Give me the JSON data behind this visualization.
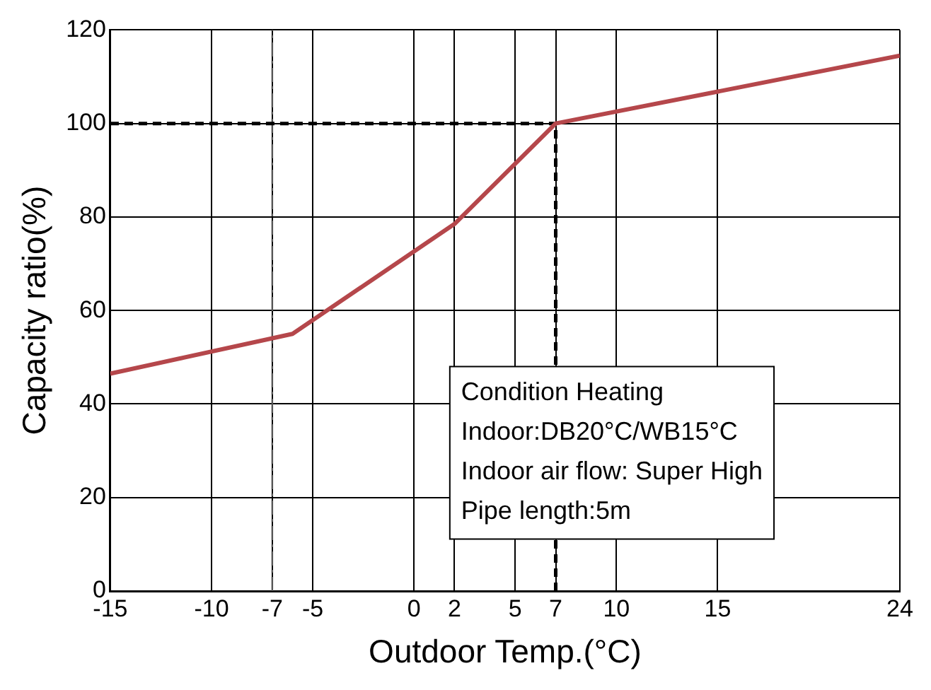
{
  "chart_data": {
    "type": "line",
    "xlabel": "Outdoor Temp.(°C)",
    "ylabel": "Capacity ratio(%)",
    "x": [
      -15,
      -6,
      2,
      7,
      24
    ],
    "series": [
      {
        "color": "#b5474b",
        "values": [
          46.5,
          55,
          78.5,
          100,
          114.5
        ]
      }
    ],
    "xlim": [
      -15,
      24
    ],
    "xticks": [
      -15,
      -10,
      -7,
      -5,
      0,
      2,
      5,
      7,
      10,
      15,
      24
    ],
    "ylim": [
      0,
      120
    ],
    "yticks": [
      0,
      20,
      40,
      60,
      80,
      100,
      120
    ],
    "grid": true,
    "marker": "none",
    "line_style": "solid",
    "legend": false,
    "ref_lines": [
      {
        "axis": "x",
        "value": -7,
        "line_style": "dotted",
        "color": "#555555"
      },
      {
        "axis": "x",
        "value": 7,
        "line_style": "dashed",
        "color": "#000000"
      },
      {
        "axis": "y",
        "value": 100,
        "line_style": "dashed",
        "color": "#000000"
      }
    ],
    "annotations": [
      "Condition Heating\nIndoor:DB20°C/WB15°C\nIndoor air flow: Super High\nPipe length:5m"
    ]
  }
}
